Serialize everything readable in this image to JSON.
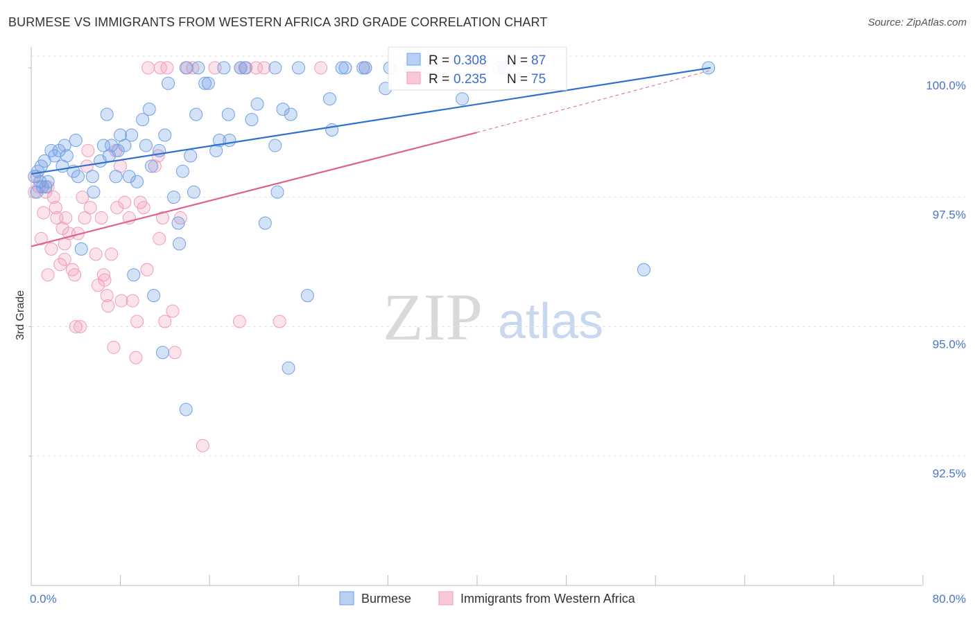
{
  "title": "BURMESE VS IMMIGRANTS FROM WESTERN AFRICA 3RD GRADE CORRELATION CHART",
  "source": "Source: ZipAtlas.com",
  "watermark": {
    "zip": "ZIP",
    "atlas": "atlas"
  },
  "legend_box": {
    "rows": [
      {
        "r_label": "R = ",
        "r_value": "0.308",
        "n_label": "N = ",
        "n_value": "87"
      },
      {
        "r_label": "R = ",
        "r_value": "0.235",
        "n_label": "N = ",
        "n_value": "75"
      }
    ]
  },
  "bottom_legend": [
    "Burmese",
    "Immigrants from Western Africa"
  ],
  "chart_data": {
    "type": "scatter",
    "title": "BURMESE VS IMMIGRANTS FROM WESTERN AFRICA 3RD GRADE CORRELATION CHART",
    "xlabel": "",
    "ylabel": "3rd Grade",
    "xlim": [
      0,
      80
    ],
    "ylim": [
      90.0,
      100.4
    ],
    "x_tick_labels": [
      "0.0%",
      "80.0%"
    ],
    "y_ticks": [
      92.5,
      95.0,
      97.5,
      100.0
    ],
    "y_tick_labels": [
      "92.5%",
      "95.0%",
      "97.5%",
      "100.0%"
    ],
    "grid": true,
    "colors": {
      "burmese": "#6fa0e6",
      "burmese_line": "#2f6fd0",
      "wafrica": "#f29bb8",
      "wafrica_line": "#e06090"
    },
    "series": [
      {
        "name": "Burmese",
        "R": 0.308,
        "N": 87,
        "trend": {
          "x0": 0,
          "y0": 97.95,
          "x1": 61,
          "y1": 100.0,
          "dashed_from": null
        },
        "points": [
          [
            0.3,
            97.9
          ],
          [
            0.5,
            97.6
          ],
          [
            0.6,
            98.0
          ],
          [
            0.8,
            97.8
          ],
          [
            0.9,
            98.1
          ],
          [
            1.0,
            97.7
          ],
          [
            1.2,
            98.2
          ],
          [
            1.3,
            97.7
          ],
          [
            1.5,
            97.8
          ],
          [
            1.8,
            98.4
          ],
          [
            2.1,
            98.3
          ],
          [
            2.5,
            98.4
          ],
          [
            2.8,
            98.1
          ],
          [
            3.0,
            98.5
          ],
          [
            3.2,
            98.3
          ],
          [
            3.8,
            98.0
          ],
          [
            4.0,
            98.6
          ],
          [
            4.2,
            97.9
          ],
          [
            4.5,
            96.5
          ],
          [
            5.5,
            97.9
          ],
          [
            5.6,
            97.6
          ],
          [
            6.2,
            98.2
          ],
          [
            6.5,
            98.5
          ],
          [
            6.8,
            99.1
          ],
          [
            7.0,
            98.3
          ],
          [
            7.2,
            98.5
          ],
          [
            7.6,
            97.9
          ],
          [
            7.8,
            98.4
          ],
          [
            8.0,
            98.7
          ],
          [
            8.4,
            98.5
          ],
          [
            8.8,
            97.9
          ],
          [
            9.0,
            98.7
          ],
          [
            9.5,
            97.8
          ],
          [
            10.0,
            99.0
          ],
          [
            10.3,
            98.5
          ],
          [
            10.6,
            99.2
          ],
          [
            10.8,
            98.1
          ],
          [
            11.5,
            98.4
          ],
          [
            12.0,
            98.7
          ],
          [
            12.3,
            99.7
          ],
          [
            11.0,
            95.6
          ],
          [
            11.8,
            94.5
          ],
          [
            12.8,
            97.5
          ],
          [
            13.2,
            97.0
          ],
          [
            13.3,
            96.6
          ],
          [
            13.6,
            98.0
          ],
          [
            13.9,
            93.4
          ],
          [
            14.3,
            98.3
          ],
          [
            14.6,
            97.6
          ],
          [
            14.8,
            99.1
          ],
          [
            15.6,
            99.7
          ],
          [
            15.9,
            99.7
          ],
          [
            16.6,
            98.4
          ],
          [
            16.9,
            98.6
          ],
          [
            17.8,
            98.6
          ],
          [
            17.7,
            99.1
          ],
          [
            18.8,
            100.0
          ],
          [
            19.2,
            100.0
          ],
          [
            19.8,
            99.0
          ],
          [
            20.3,
            99.3
          ],
          [
            21.0,
            97.0
          ],
          [
            21.9,
            98.5
          ],
          [
            22.1,
            97.6
          ],
          [
            22.6,
            99.2
          ],
          [
            23.3,
            99.1
          ],
          [
            24.8,
            95.6
          ],
          [
            27.0,
            98.8
          ],
          [
            26.8,
            99.4
          ],
          [
            27.9,
            100.0
          ],
          [
            28.2,
            100.0
          ],
          [
            29.8,
            100.0
          ],
          [
            31.8,
            99.6
          ],
          [
            32.2,
            100.0
          ],
          [
            34.0,
            100.0
          ],
          [
            38.7,
            99.4
          ],
          [
            42.0,
            100.0
          ],
          [
            42.5,
            100.0
          ],
          [
            30.0,
            100.0
          ],
          [
            55.0,
            96.1
          ],
          [
            60.8,
            100.0
          ],
          [
            23.1,
            94.2
          ],
          [
            9.2,
            96.0
          ],
          [
            13.9,
            100.0
          ],
          [
            15.0,
            100.0
          ],
          [
            17.3,
            100.0
          ],
          [
            21.9,
            100.0
          ],
          [
            24.0,
            100.0
          ]
        ]
      },
      {
        "name": "Immigrants from Western Africa",
        "R": 0.235,
        "N": 75,
        "trend": {
          "x0": 0,
          "y0": 96.55,
          "x1": 40,
          "y1": 98.75,
          "dashed_from": 40,
          "dashed_x1": 61,
          "dashed_y1": 99.95
        },
        "points": [
          [
            0.3,
            97.6
          ],
          [
            0.5,
            97.9
          ],
          [
            0.7,
            97.7
          ],
          [
            0.9,
            96.7
          ],
          [
            1.1,
            97.2
          ],
          [
            1.3,
            97.6
          ],
          [
            1.5,
            97.7
          ],
          [
            1.8,
            96.5
          ],
          [
            2.0,
            97.5
          ],
          [
            2.3,
            97.1
          ],
          [
            2.6,
            96.2
          ],
          [
            2.8,
            96.9
          ],
          [
            3.0,
            96.6
          ],
          [
            3.1,
            97.1
          ],
          [
            3.4,
            96.8
          ],
          [
            3.7,
            96.1
          ],
          [
            3.9,
            96.0
          ],
          [
            4.0,
            95.0
          ],
          [
            4.4,
            95.0
          ],
          [
            4.6,
            97.5
          ],
          [
            4.8,
            97.1
          ],
          [
            5.1,
            98.4
          ],
          [
            5.3,
            97.3
          ],
          [
            5.8,
            96.4
          ],
          [
            6.0,
            95.8
          ],
          [
            6.3,
            97.1
          ],
          [
            6.5,
            96.0
          ],
          [
            6.6,
            95.9
          ],
          [
            6.9,
            95.4
          ],
          [
            7.2,
            96.4
          ],
          [
            7.4,
            94.6
          ],
          [
            7.7,
            97.3
          ],
          [
            8.0,
            98.1
          ],
          [
            8.1,
            95.5
          ],
          [
            8.4,
            97.4
          ],
          [
            8.8,
            97.1
          ],
          [
            9.1,
            95.5
          ],
          [
            9.5,
            95.1
          ],
          [
            9.8,
            97.4
          ],
          [
            10.1,
            97.3
          ],
          [
            10.4,
            96.1
          ],
          [
            11.1,
            98.1
          ],
          [
            11.5,
            96.7
          ],
          [
            11.8,
            97.1
          ],
          [
            12.0,
            95.1
          ],
          [
            12.7,
            95.3
          ],
          [
            12.9,
            94.5
          ],
          [
            13.4,
            97.1
          ],
          [
            14.0,
            100.0
          ],
          [
            14.5,
            100.0
          ],
          [
            16.5,
            100.0
          ],
          [
            18.8,
            100.0
          ],
          [
            19.3,
            100.0
          ],
          [
            20.2,
            100.0
          ],
          [
            20.9,
            100.0
          ],
          [
            26.0,
            100.0
          ],
          [
            30.0,
            100.0
          ],
          [
            35.5,
            100.0
          ],
          [
            37.0,
            100.0
          ],
          [
            40.0,
            100.0
          ],
          [
            10.5,
            100.0
          ],
          [
            11.6,
            100.0
          ],
          [
            12.2,
            100.0
          ],
          [
            15.4,
            92.7
          ],
          [
            18.7,
            95.1
          ],
          [
            22.3,
            95.1
          ],
          [
            3.0,
            96.3
          ],
          [
            1.5,
            96.0
          ],
          [
            9.4,
            94.4
          ],
          [
            5.0,
            98.1
          ],
          [
            7.6,
            98.4
          ],
          [
            11.4,
            98.3
          ],
          [
            2.2,
            97.3
          ],
          [
            4.2,
            96.8
          ],
          [
            6.8,
            95.6
          ]
        ]
      }
    ]
  }
}
